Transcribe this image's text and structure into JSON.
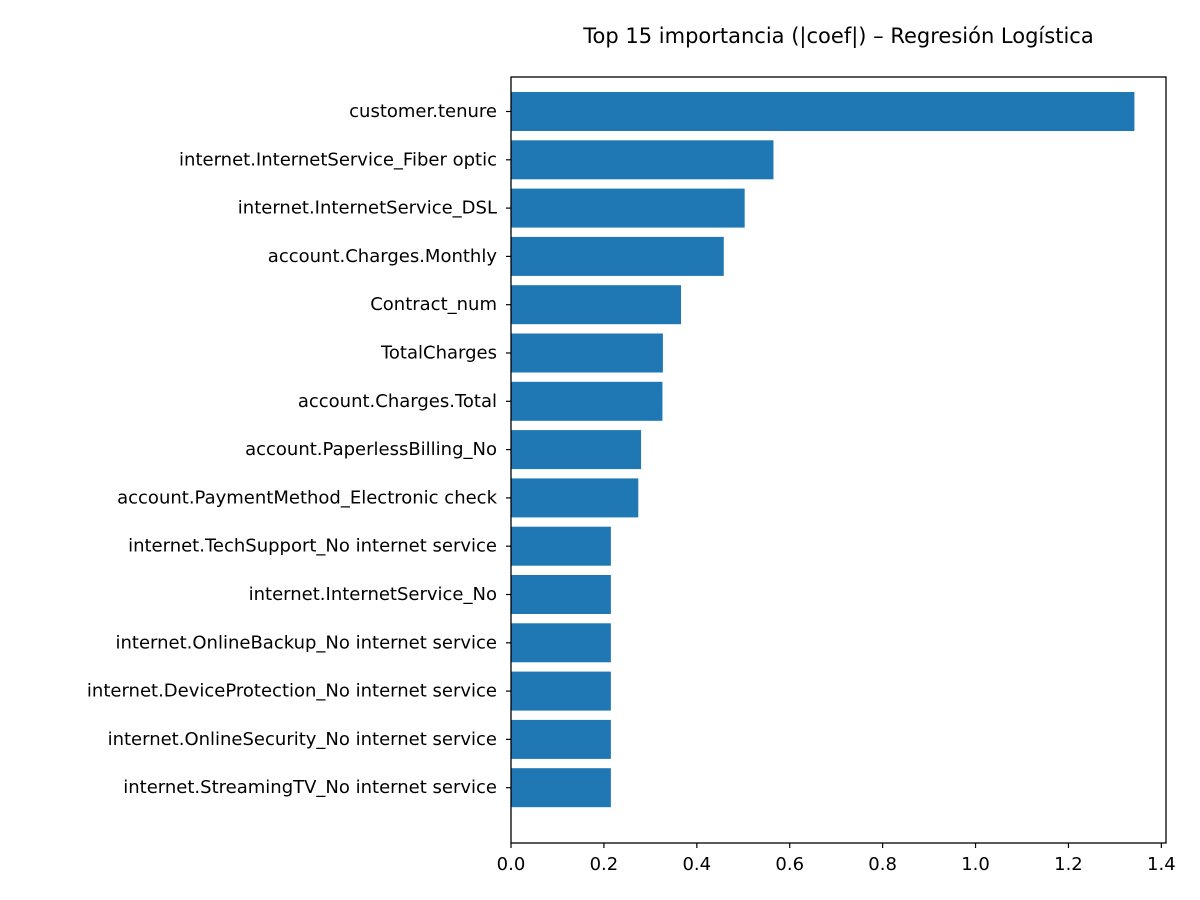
{
  "chart_data": {
    "type": "bar",
    "orientation": "horizontal",
    "title": "Top 15 importancia (|coef|) – Regresión Logística",
    "xlabel": "",
    "ylabel": "",
    "xlim": [
      0,
      1.41
    ],
    "xticks": [
      0.0,
      0.2,
      0.4,
      0.6,
      0.8,
      1.0,
      1.2,
      1.4
    ],
    "xtick_labels": [
      "0.0",
      "0.2",
      "0.4",
      "0.6",
      "0.8",
      "1.0",
      "1.2",
      "1.4"
    ],
    "grid": false,
    "legend": "none",
    "bar_color": "#1f77b4",
    "categories": [
      "customer.tenure",
      "internet.InternetService_Fiber optic",
      "internet.InternetService_DSL",
      "account.Charges.Monthly",
      "Contract_num",
      "TotalCharges",
      "account.Charges.Total",
      "account.PaperlessBilling_No",
      "account.PaymentMethod_Electronic check",
      "internet.TechSupport_No internet service",
      "internet.InternetService_No",
      "internet.OnlineBackup_No internet service",
      "internet.DeviceProtection_No internet service",
      "internet.OnlineSecurity_No internet service",
      "internet.StreamingTV_No internet service"
    ],
    "values": [
      1.342,
      0.565,
      0.503,
      0.458,
      0.366,
      0.327,
      0.326,
      0.28,
      0.274,
      0.215,
      0.215,
      0.215,
      0.215,
      0.215,
      0.215
    ]
  }
}
